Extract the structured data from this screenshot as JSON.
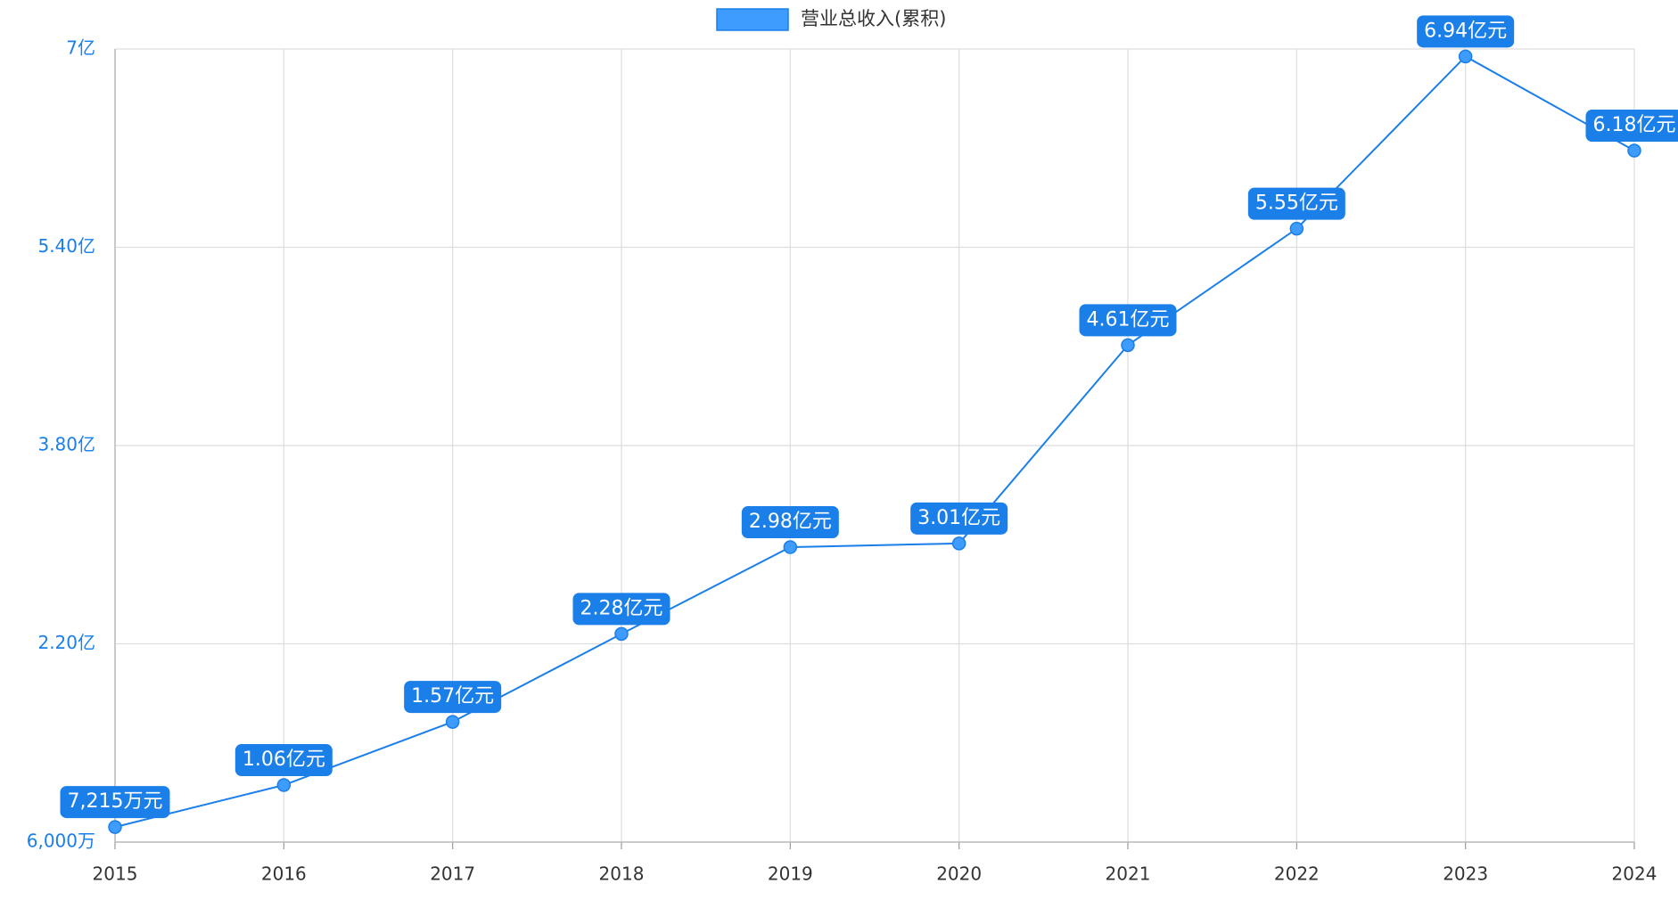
{
  "chart_data": {
    "type": "line",
    "categories": [
      "2015",
      "2016",
      "2017",
      "2018",
      "2019",
      "2020",
      "2021",
      "2022",
      "2023",
      "2024"
    ],
    "series": [
      {
        "name": "营业总收入(累积)",
        "color": "#1a7fe8",
        "values": [
          0.7215,
          1.06,
          1.57,
          2.28,
          2.98,
          3.01,
          4.61,
          5.55,
          6.94,
          6.18
        ],
        "value_labels": [
          "7,215万元",
          "1.06亿元",
          "1.57亿元",
          "2.28亿元",
          "2.98亿元",
          "3.01亿元",
          "4.61亿元",
          "5.55亿元",
          "6.94亿元",
          "6.18亿元"
        ]
      }
    ],
    "ylim": [
      0.6,
      7
    ],
    "yticks": [
      {
        "value": 0.6,
        "label": "6,000万"
      },
      {
        "value": 2.2,
        "label": "2.20亿"
      },
      {
        "value": 3.8,
        "label": "3.80亿"
      },
      {
        "value": 5.4,
        "label": "5.40亿"
      },
      {
        "value": 7,
        "label": "7亿"
      }
    ],
    "grid": true,
    "legend": "top"
  }
}
